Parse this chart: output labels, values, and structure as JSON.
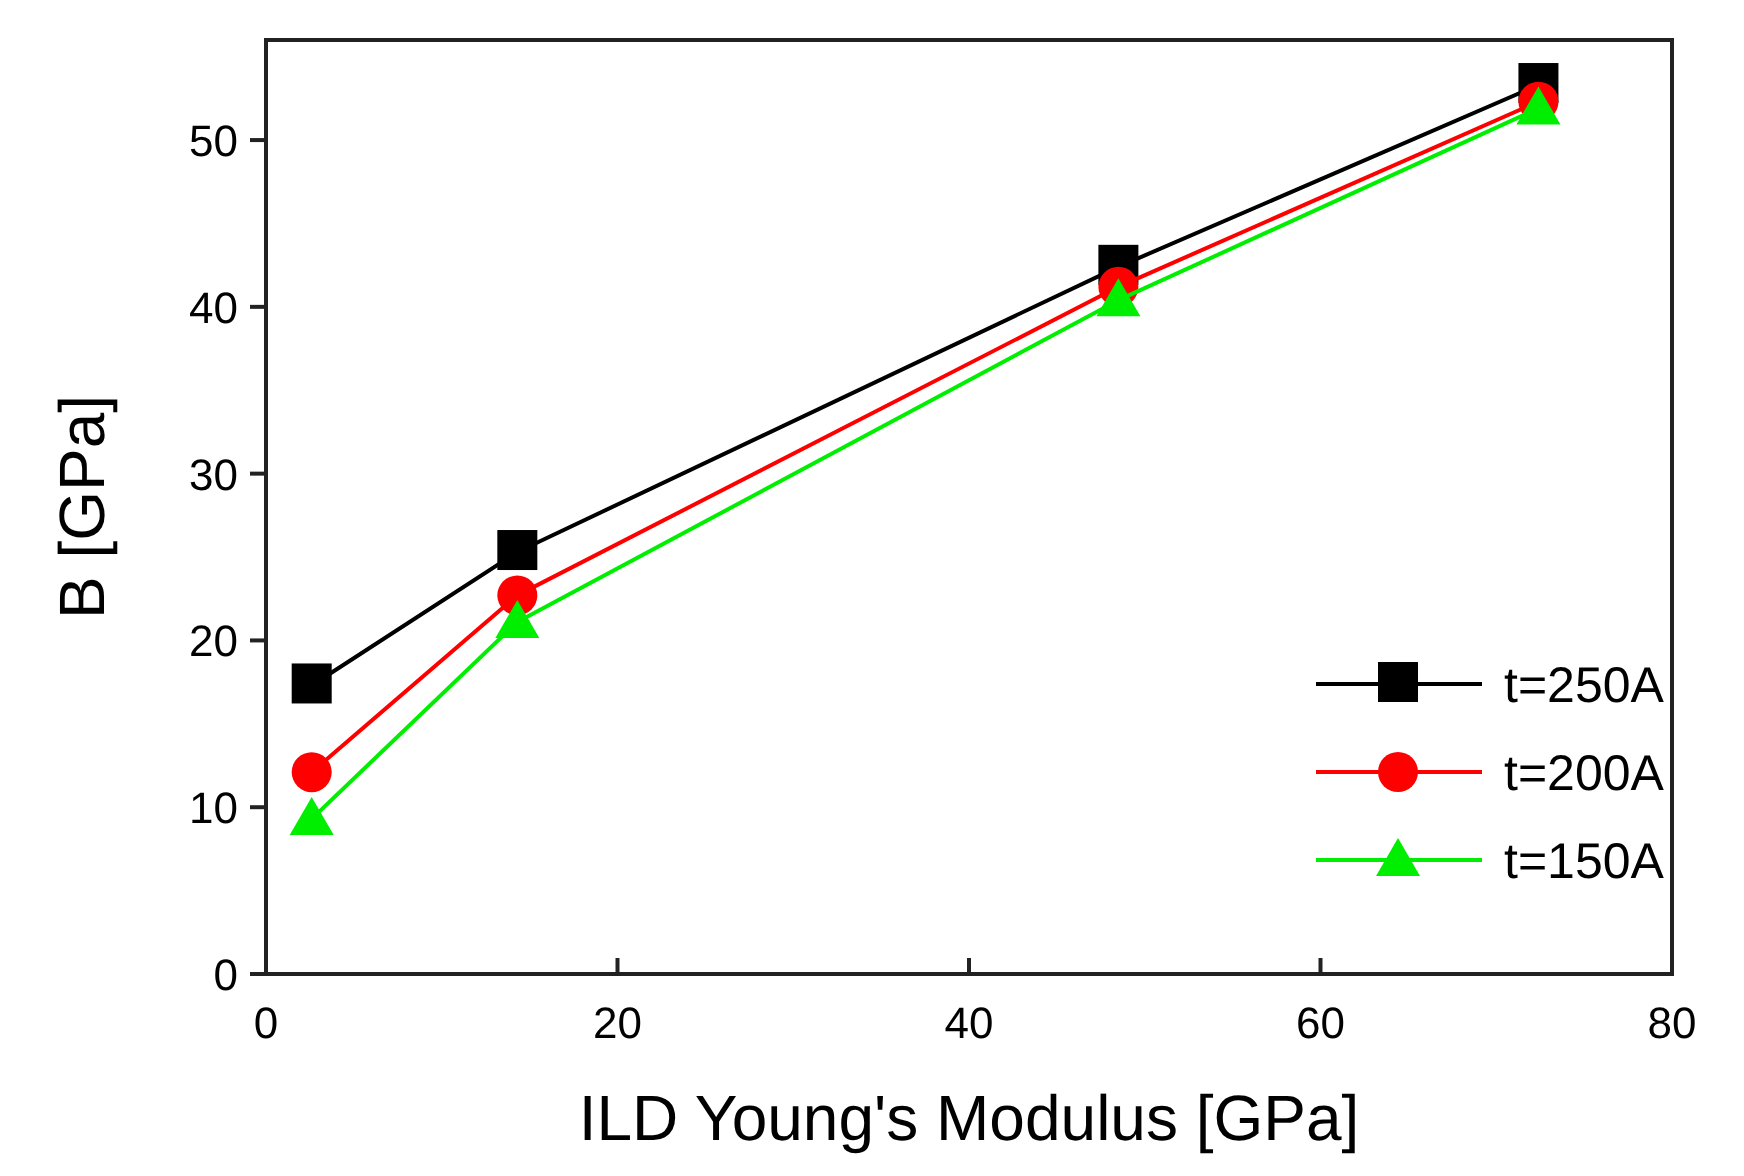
{
  "chart_data": {
    "type": "line",
    "xlabel": "ILD Young's Modulus [GPa]",
    "ylabel": "B [GPa]",
    "x": [
      2.6,
      14.3,
      48.5,
      72.4
    ],
    "series": [
      {
        "name": "t=250A",
        "color": "#000000",
        "marker": "square",
        "values": [
          17.3,
          25.3,
          42.4,
          53.3
        ]
      },
      {
        "name": "t=200A",
        "color": "#ff0000",
        "marker": "circle",
        "values": [
          12.1,
          22.7,
          41.2,
          52.3
        ]
      },
      {
        "name": "t=150A",
        "color": "#00ee00",
        "marker": "triangle",
        "values": [
          9.3,
          21.1,
          40.4,
          51.9
        ]
      }
    ],
    "xlim": [
      0,
      80
    ],
    "xticks": [
      0,
      20,
      40,
      60,
      80
    ],
    "ylim": [
      0,
      56
    ],
    "yticks": [
      0,
      10,
      20,
      30,
      40,
      50
    ],
    "legend": "bottom right",
    "grid": false,
    "line_style": "solid"
  }
}
